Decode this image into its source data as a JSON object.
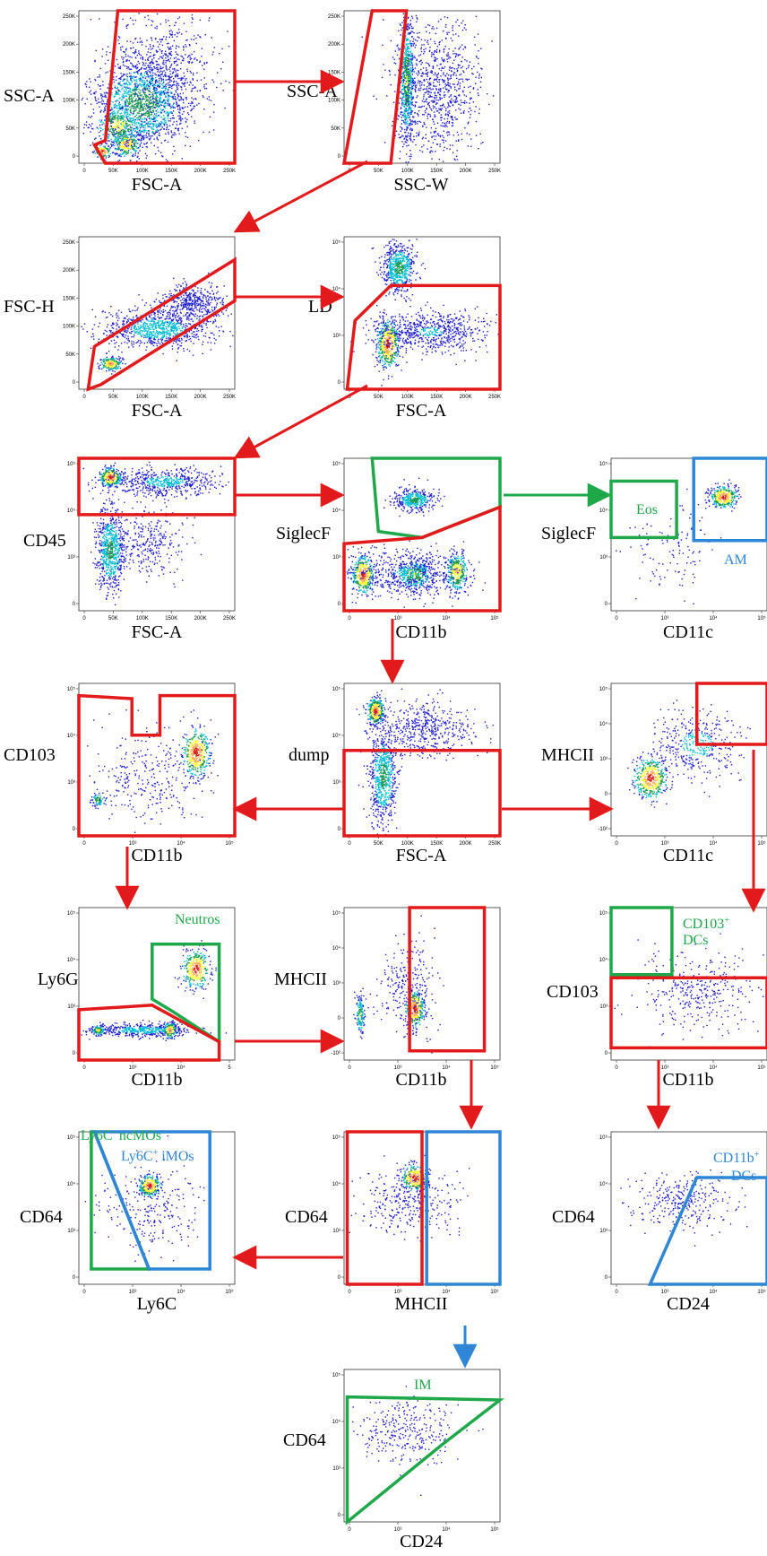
{
  "colors": {
    "red": "#e31a1c",
    "green": "#1fa84a",
    "blue": "#2f86d6"
  },
  "ticks": {
    "linear": [
      "0",
      "50K",
      "100K",
      "150K",
      "200K",
      "250K"
    ],
    "log_y": [
      "0",
      "10³",
      "10⁴",
      "10⁵"
    ],
    "log_y_neg": [
      "-10²",
      "0",
      "10³",
      "10⁴",
      "10⁵"
    ],
    "log_x": [
      "0",
      "10³",
      "10⁴",
      "10⁵"
    ],
    "ly6g_x": [
      "0",
      "10³",
      "10⁴",
      "5"
    ]
  },
  "panels": [
    {
      "id": "p1",
      "xlabel": "FSC-A",
      "ylabel": "SSC-A"
    },
    {
      "id": "p2",
      "xlabel": "SSC-W",
      "ylabel": "SSC-A"
    },
    {
      "id": "p3",
      "xlabel": "FSC-A",
      "ylabel": "FSC-H"
    },
    {
      "id": "p4",
      "xlabel": "FSC-A",
      "ylabel": "LD"
    },
    {
      "id": "p5",
      "xlabel": "FSC-A",
      "ylabel": "CD45"
    },
    {
      "id": "p6",
      "xlabel": "CD11b",
      "ylabel": "SiglecF"
    },
    {
      "id": "p7",
      "xlabel": "CD11c",
      "ylabel": "SiglecF"
    },
    {
      "id": "p8",
      "xlabel": "CD11b",
      "ylabel": "CD103"
    },
    {
      "id": "p9",
      "xlabel": "FSC-A",
      "ylabel": "dump"
    },
    {
      "id": "p10",
      "xlabel": "CD11c",
      "ylabel": "MHCII"
    },
    {
      "id": "p11",
      "xlabel": "CD11b",
      "ylabel": "Ly6G"
    },
    {
      "id": "p12",
      "xlabel": "CD11b",
      "ylabel": "MHCII"
    },
    {
      "id": "p13",
      "xlabel": "CD11b",
      "ylabel": "CD103"
    },
    {
      "id": "p14",
      "xlabel": "Ly6C",
      "ylabel": "CD64"
    },
    {
      "id": "p15",
      "xlabel": "MHCII",
      "ylabel": "CD64"
    },
    {
      "id": "p16",
      "xlabel": "CD24",
      "ylabel": "CD64"
    },
    {
      "id": "p17",
      "xlabel": "CD24",
      "ylabel": "CD64"
    }
  ],
  "gates": {
    "eos": "Eos",
    "am": "AM",
    "neutros": "Neutros",
    "cd103_dcs_main": "CD103",
    "cd103_dcs_sup": "+",
    "cd103_dcs_line2": "DCs",
    "ncmos_main": "Ly6C",
    "ncmos_sup": "-",
    "ncmos_rest": " ncMOs",
    "imos_main": "Ly6C",
    "imos_sup": "+",
    "imos_rest": " iMOs",
    "cd11b_dcs_main": "CD11b",
    "cd11b_dcs_sup": "+",
    "cd11b_dcs_line2": "DCs",
    "im": "IM"
  }
}
